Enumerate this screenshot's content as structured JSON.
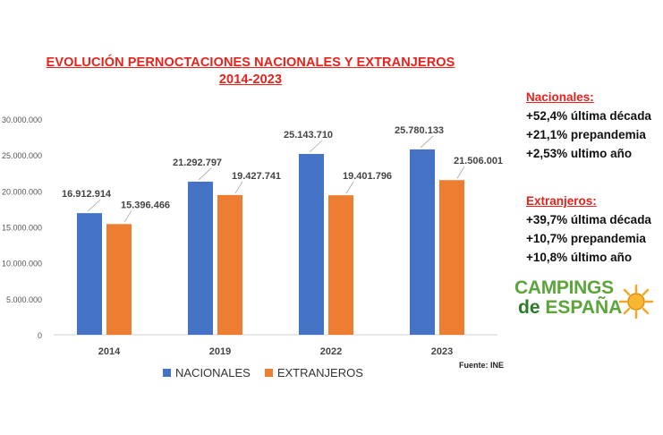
{
  "title_line1": "EVOLUCIÓN PERNOCTACIONES NACIONALES Y EXTRANJEROS",
  "title_line2": "2014-2023",
  "source": "Fuente: INE",
  "nacionales": {
    "heading": "Nacionales:",
    "lines": [
      "+52,4% última década",
      "+21,1% prepandemia",
      "+2,53% ultimo año"
    ]
  },
  "extranjeros": {
    "heading": "Extranjeros:",
    "lines": [
      "+39,7% última década",
      "+10,7% prepandemia",
      "+10,8% último año"
    ]
  },
  "logo": {
    "line1": "CAMPINGS",
    "line2_de": "de",
    "line2_rest": "ESPAÑA",
    "icon": "sun-icon"
  },
  "colors": {
    "nacionales": "#4472c4",
    "extranjeros": "#ed7d31",
    "accent": "#e8211b"
  },
  "chart_data": {
    "type": "bar",
    "categories": [
      "2014",
      "2019",
      "2022",
      "2023"
    ],
    "series": [
      {
        "name": "NACIONALES",
        "values": [
          16912914,
          21292797,
          25143710,
          25780133
        ],
        "labels": [
          "16.912.914",
          "21.292.797",
          "25.143.710",
          "25.780.133"
        ]
      },
      {
        "name": "EXTRANJEROS",
        "values": [
          15396466,
          19427741,
          19401796,
          21506001
        ],
        "labels": [
          "15.396.466",
          "19.427.741",
          "19.401.796",
          "21.506.001"
        ]
      }
    ],
    "yticks": [
      "0",
      "5.000.000",
      "10.000.000",
      "15.000.000",
      "20.000.000",
      "25.000.000",
      "30.000.000"
    ],
    "ylim": [
      0,
      30000000
    ],
    "legend": "bottom"
  }
}
